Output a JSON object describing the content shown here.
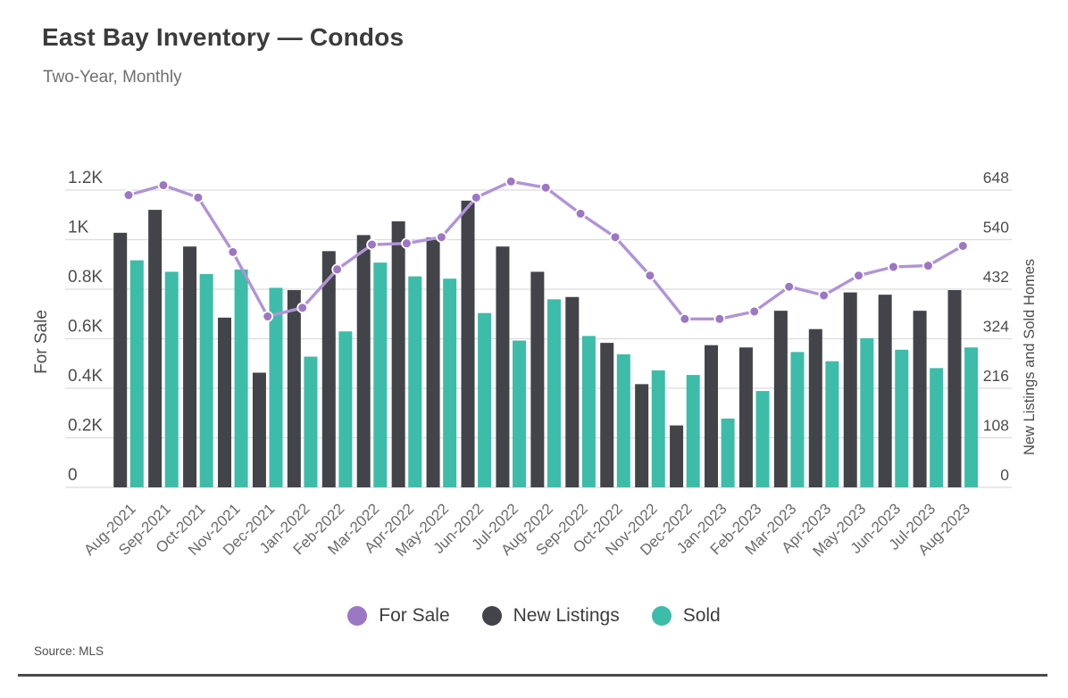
{
  "header": {
    "title": "East Bay Inventory — Condos",
    "subtitle": "Two-Year, Monthly"
  },
  "footer": {
    "source": "Source: MLS"
  },
  "colors": {
    "for_sale_line": "#b094d6",
    "for_sale_point": "#9c77c4",
    "new_listings": "#434449",
    "sold": "#3dbca9",
    "grid": "#dcdcdc",
    "axis_tick_text": "#4d4d4d",
    "axis_title_text": "#4d4d4d",
    "x_label_text": "#6a6a6a"
  },
  "chart_data": {
    "type": "bar",
    "subtype": "combo-bar-line",
    "title": "East Bay Inventory — Condos",
    "subtitle": "Two-Year, Monthly",
    "grid": "on",
    "legend_position": "bottom",
    "categories": [
      "Aug-2021",
      "Sep-2021",
      "Oct-2021",
      "Nov-2021",
      "Dec-2021",
      "Jan-2022",
      "Feb-2022",
      "Mar-2022",
      "Apr-2022",
      "May-2022",
      "Jun-2022",
      "Jul-2022",
      "Aug-2022",
      "Sep-2022",
      "Oct-2022",
      "Nov-2022",
      "Dec-2022",
      "Jan-2023",
      "Feb-2023",
      "Mar-2023",
      "Apr-2023",
      "May-2023",
      "Jun-2023",
      "Jul-2023",
      "Aug-2023"
    ],
    "left_axis": {
      "title": "For Sale",
      "min": 0,
      "max": 1200,
      "tick_labels": [
        "0",
        "0.2K",
        "0.4K",
        "0.6K",
        "0.8K",
        "1K",
        "1.2K"
      ]
    },
    "right_axis": {
      "title": "New Listings and Sold Homes",
      "min": 0,
      "max": 648,
      "tick_labels": [
        "0",
        "108",
        "216",
        "324",
        "432",
        "540",
        "648"
      ]
    },
    "series": [
      {
        "name": "For Sale",
        "type": "line",
        "axis": "left",
        "values": [
          1180,
          1220,
          1170,
          950,
          690,
          725,
          880,
          980,
          985,
          1010,
          1170,
          1235,
          1210,
          1105,
          1010,
          855,
          680,
          680,
          710,
          810,
          775,
          855,
          890,
          895,
          975
        ]
      },
      {
        "name": "New Listings",
        "type": "bar",
        "axis": "right",
        "values": [
          555,
          605,
          525,
          370,
          250,
          430,
          515,
          550,
          580,
          545,
          625,
          525,
          470,
          415,
          315,
          225,
          135,
          310,
          305,
          385,
          345,
          425,
          420,
          385,
          430
        ]
      },
      {
        "name": "Sold",
        "type": "bar",
        "axis": "right",
        "values": [
          495,
          470,
          465,
          475,
          435,
          285,
          340,
          490,
          460,
          455,
          380,
          320,
          410,
          330,
          290,
          255,
          245,
          150,
          210,
          295,
          275,
          325,
          300,
          260,
          305
        ]
      }
    ]
  }
}
